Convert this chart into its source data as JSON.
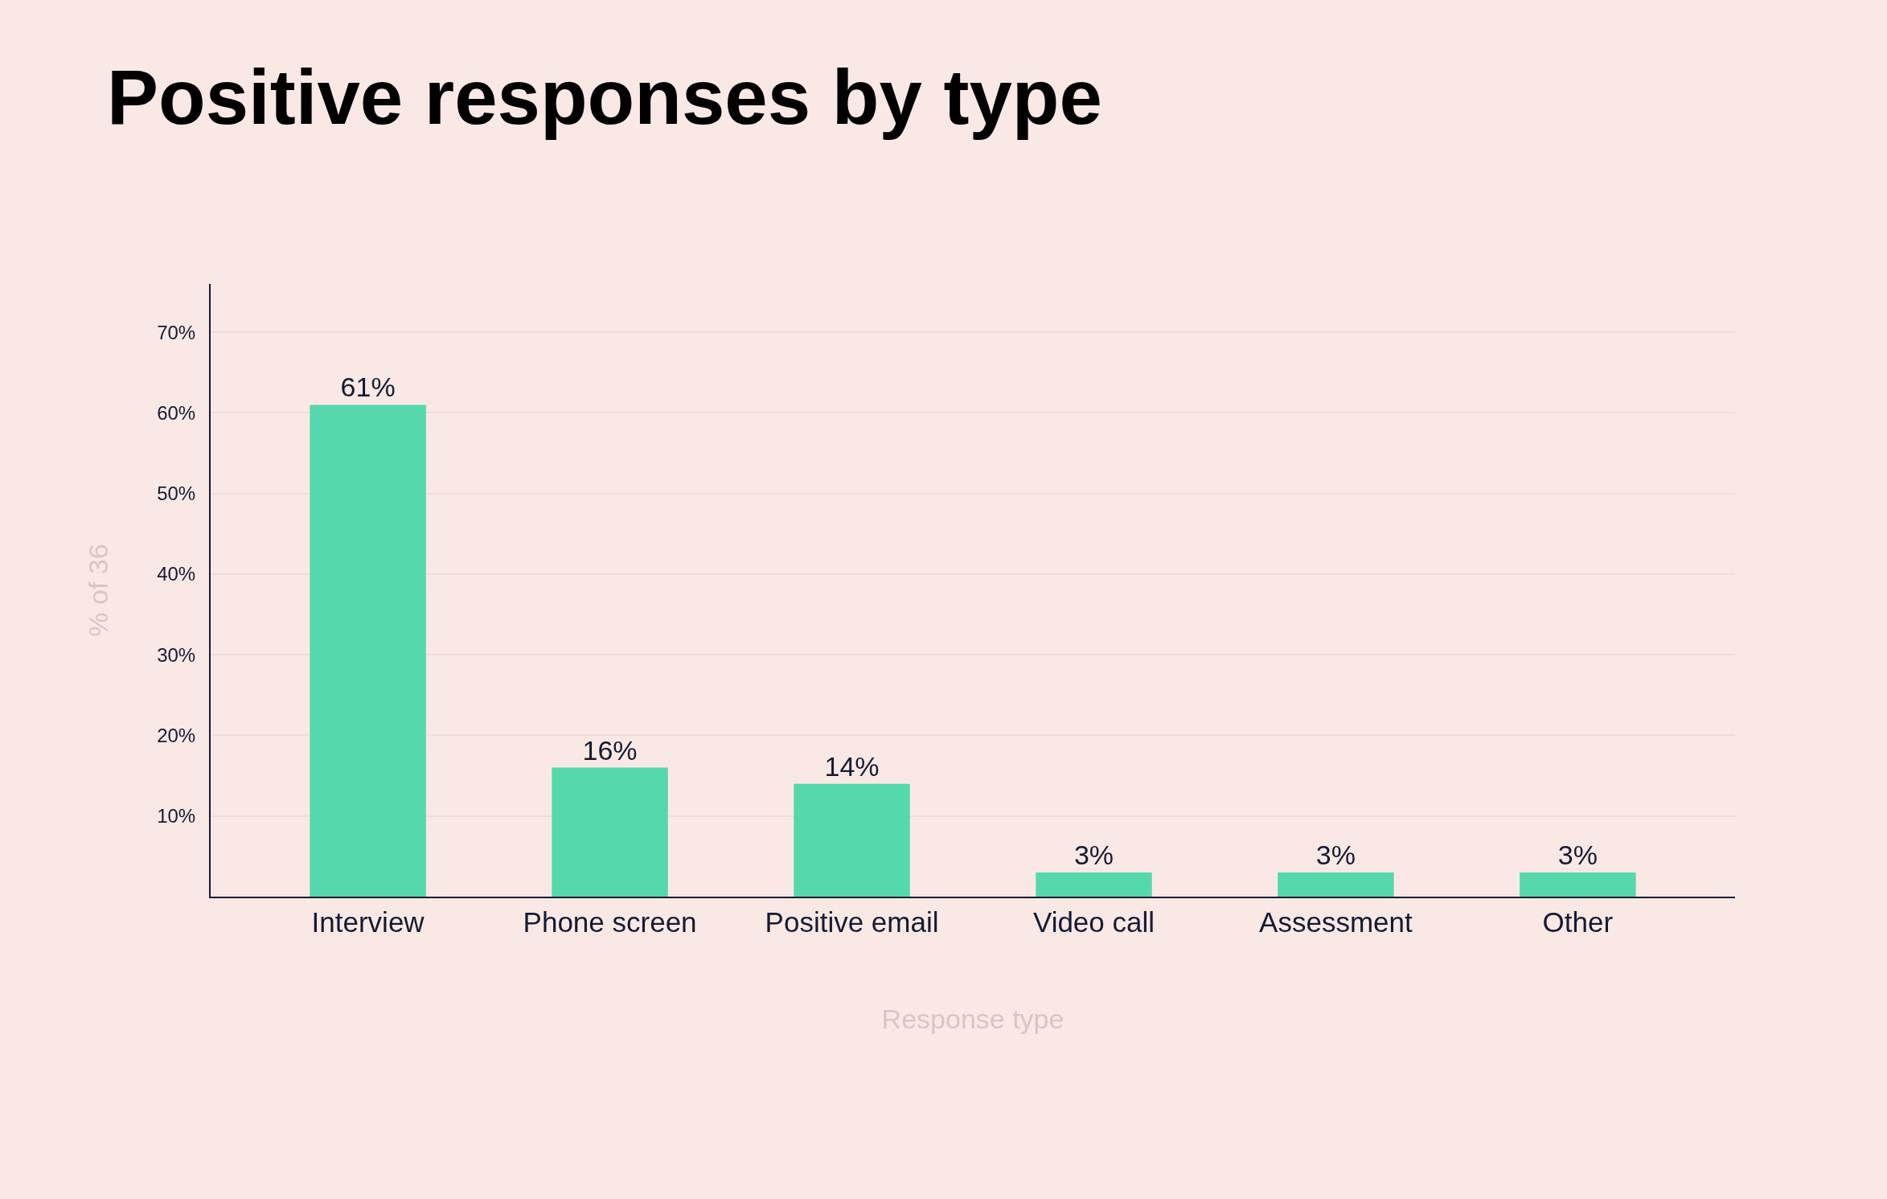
{
  "chart_data": {
    "type": "bar",
    "title": "Positive responses by type",
    "xlabel": "Response type",
    "ylabel": "% of 36",
    "categories": [
      "Interview",
      "Phone screen",
      "Positive email",
      "Video call",
      "Assessment",
      "Other"
    ],
    "values": [
      61,
      16,
      14,
      3,
      3,
      3
    ],
    "value_labels": [
      "61%",
      "16%",
      "14%",
      "3%",
      "3%",
      "3%"
    ],
    "color": "#56d8ad",
    "ylim": [
      0,
      76
    ],
    "yticks": [
      {
        "value": 10,
        "label": "10%"
      },
      {
        "value": 20,
        "label": "20%"
      },
      {
        "value": 30,
        "label": "30%"
      },
      {
        "value": 40,
        "label": "40%"
      },
      {
        "value": 50,
        "label": "50%"
      },
      {
        "value": 60,
        "label": "60%"
      },
      {
        "value": 70,
        "label": "70%"
      }
    ],
    "grid": "y",
    "legend": false
  }
}
